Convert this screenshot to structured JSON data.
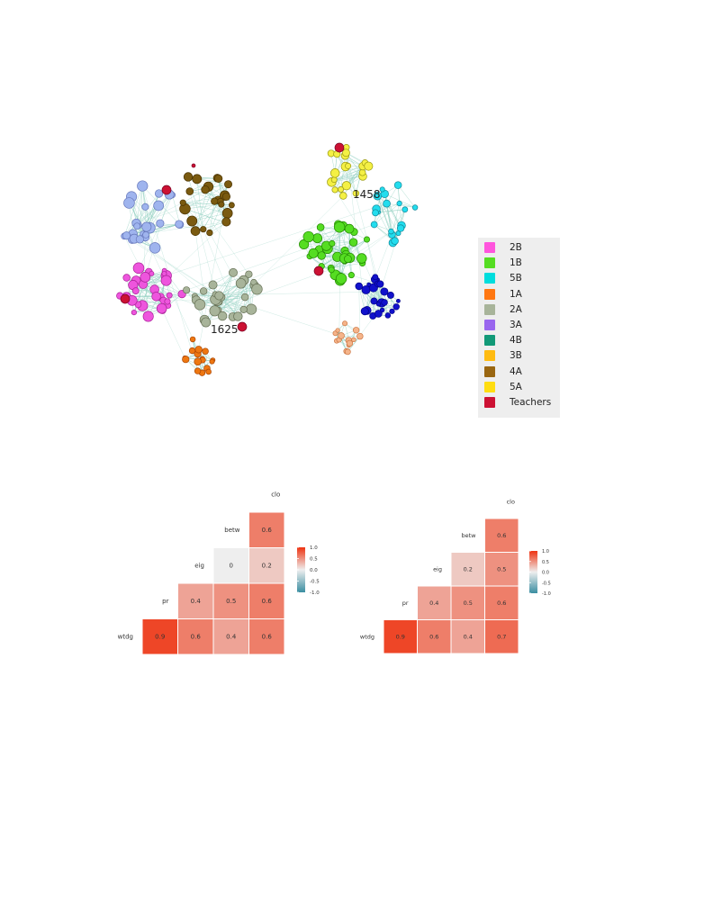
{
  "network": {
    "node_labels": [
      "1458",
      "1625"
    ],
    "edge_color": "#8fcfbf"
  },
  "legend": {
    "items": [
      {
        "label": "2B",
        "color": "#ff55dd"
      },
      {
        "label": "1B",
        "color": "#55dd22"
      },
      {
        "label": "5B",
        "color": "#00dddd"
      },
      {
        "label": "1A",
        "color": "#ff7711"
      },
      {
        "label": "2A",
        "color": "#a8b49a"
      },
      {
        "label": "3A",
        "color": "#9966ee"
      },
      {
        "label": "4B",
        "color": "#119977"
      },
      {
        "label": "3B",
        "color": "#ffbb11"
      },
      {
        "label": "4A",
        "color": "#996611"
      },
      {
        "label": "5A",
        "color": "#ffdd11"
      },
      {
        "label": "Teachers",
        "color": "#cc1133"
      }
    ]
  },
  "chart_data": [
    {
      "type": "heatmap",
      "variables": [
        "wtdg",
        "pr",
        "eig",
        "betw",
        "clo"
      ],
      "cells": [
        {
          "row": "wtdg",
          "col": "pr",
          "value": 0.9
        },
        {
          "row": "wtdg",
          "col": "eig",
          "value": 0.6
        },
        {
          "row": "pr",
          "col": "eig",
          "value": 0.4
        },
        {
          "row": "wtdg",
          "col": "betw",
          "value": 0.4
        },
        {
          "row": "pr",
          "col": "betw",
          "value": 0.5
        },
        {
          "row": "eig",
          "col": "betw",
          "value": 0
        },
        {
          "row": "wtdg",
          "col": "clo",
          "value": 0.6
        },
        {
          "row": "pr",
          "col": "clo",
          "value": 0.6
        },
        {
          "row": "eig",
          "col": "clo",
          "value": 0.2
        },
        {
          "row": "betw",
          "col": "clo",
          "value": 0.6
        }
      ],
      "scale": {
        "min": -1.0,
        "max": 1.0,
        "ticks": [
          "1.0",
          "0.5",
          "0.0",
          "-0.5",
          "-1.0"
        ]
      }
    },
    {
      "type": "heatmap",
      "variables": [
        "wtdg",
        "pr",
        "eig",
        "betw",
        "clo"
      ],
      "cells": [
        {
          "row": "wtdg",
          "col": "pr",
          "value": 0.9
        },
        {
          "row": "wtdg",
          "col": "eig",
          "value": 0.6
        },
        {
          "row": "pr",
          "col": "eig",
          "value": 0.4
        },
        {
          "row": "wtdg",
          "col": "betw",
          "value": 0.4
        },
        {
          "row": "pr",
          "col": "betw",
          "value": 0.5
        },
        {
          "row": "eig",
          "col": "betw",
          "value": 0.2
        },
        {
          "row": "wtdg",
          "col": "clo",
          "value": 0.7
        },
        {
          "row": "pr",
          "col": "clo",
          "value": 0.6
        },
        {
          "row": "eig",
          "col": "clo",
          "value": 0.5
        },
        {
          "row": "betw",
          "col": "clo",
          "value": 0.6
        }
      ],
      "scale": {
        "min": -1.0,
        "max": 1.0,
        "ticks": [
          "1.0",
          "0.5",
          "0.0",
          "-0.5",
          "-1.0"
        ]
      }
    }
  ]
}
